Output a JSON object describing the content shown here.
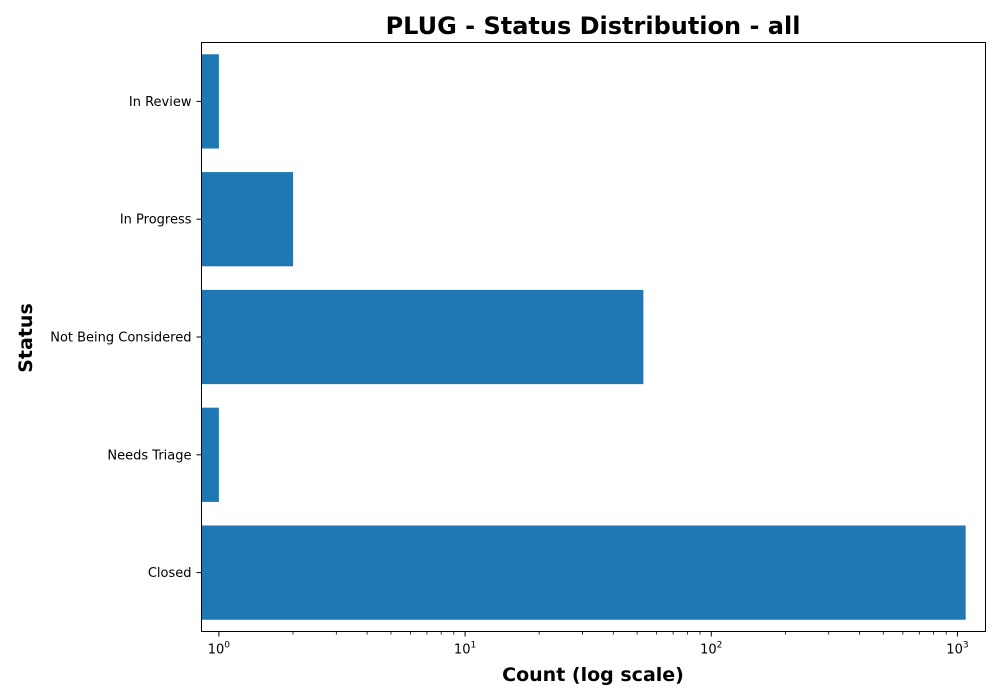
{
  "chart_data": {
    "type": "bar",
    "orientation": "horizontal",
    "title": "PLUG - Status Distribution - all",
    "xlabel": "Count (log scale)",
    "ylabel": "Status",
    "xscale": "log",
    "xlim": [
      0.85,
      1300
    ],
    "xticks": [
      {
        "value": 1,
        "base": "10",
        "exp": "0"
      },
      {
        "value": 10,
        "base": "10",
        "exp": "1"
      },
      {
        "value": 100,
        "base": "10",
        "exp": "2"
      },
      {
        "value": 1000,
        "base": "10",
        "exp": "3"
      }
    ],
    "categories": [
      "Closed",
      "Needs Triage",
      "Not Being Considered",
      "In Progress",
      "In Review"
    ],
    "values": [
      1080,
      1,
      53,
      2,
      1
    ],
    "bar_color": "#1f77b4",
    "grid": false,
    "legend": "none"
  }
}
